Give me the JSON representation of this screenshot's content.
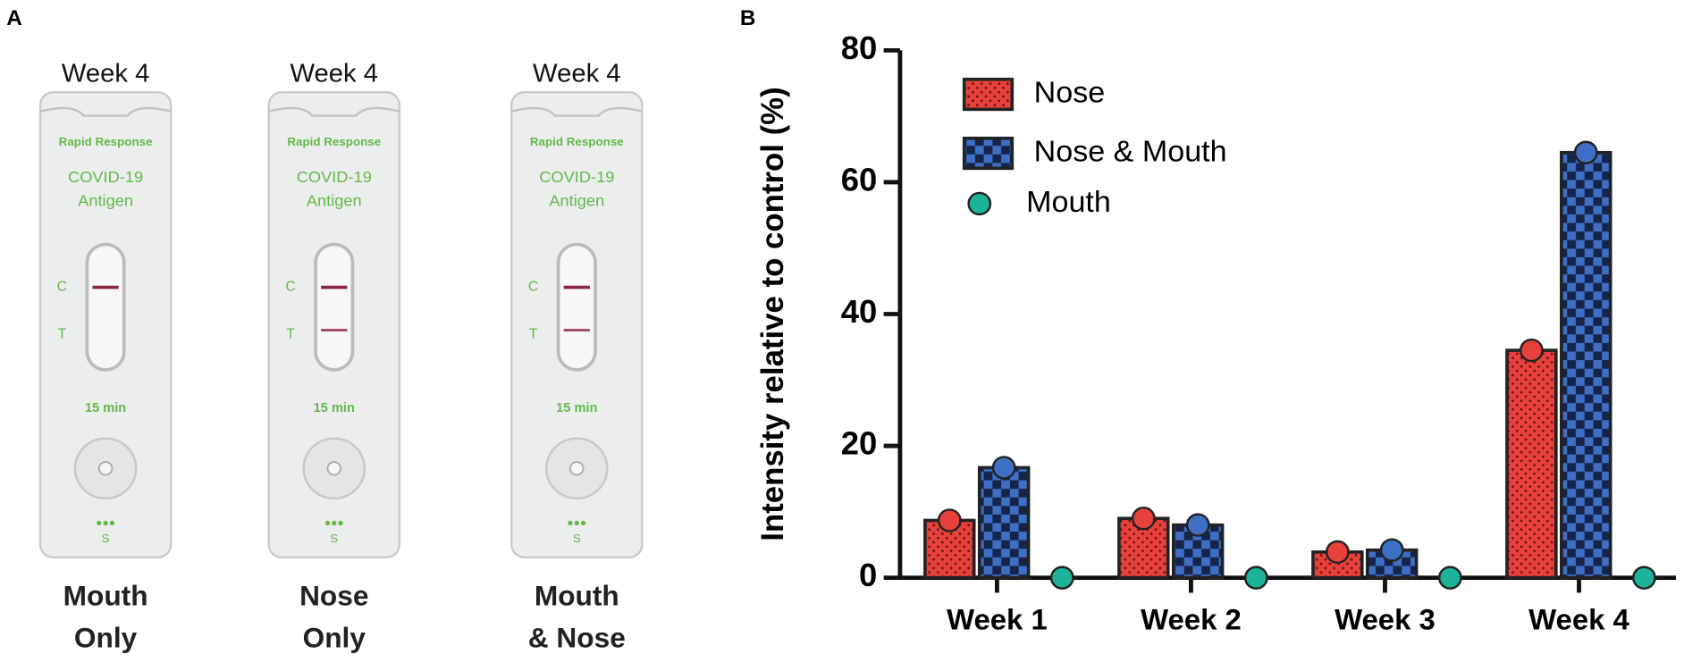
{
  "panel_a": {
    "panel_label": "A",
    "cassette_text": {
      "brand": "Rapid Response",
      "name": "COVID-19",
      "kind": "Antigen",
      "c": "C",
      "t": "T",
      "time": "15 min",
      "s": "S"
    },
    "cassettes": [
      {
        "week": "Week 4",
        "label": [
          "Mouth",
          "Only"
        ],
        "t_line": false
      },
      {
        "week": "Week 4",
        "label": [
          "Nose",
          "Only"
        ],
        "t_line": true
      },
      {
        "week": "Week 4",
        "label": [
          "Mouth",
          "& Nose"
        ],
        "t_line": true
      }
    ]
  },
  "chart_data": {
    "type": "bar",
    "panel_label": "B",
    "y_label": "Intensity relative to control (%)",
    "categories": [
      "Week 1",
      "Week 2",
      "Week 3",
      "Week 4"
    ],
    "series": [
      {
        "name": "Nose",
        "color": "#e8413c",
        "values": [
          8.7,
          9,
          3.9,
          34.5
        ]
      },
      {
        "name": "Nose & Mouth",
        "color": "#3f6fc4",
        "values": [
          16.7,
          8,
          4.2,
          64.5
        ]
      },
      {
        "name": "Mouth",
        "color": "#1db39a",
        "type": "scatter",
        "values": [
          0,
          0,
          0,
          0
        ]
      }
    ],
    "ylim": [
      0,
      80
    ],
    "yticks": [
      0,
      20,
      40,
      60,
      80
    ],
    "legend": "upper left",
    "grid": false
  }
}
